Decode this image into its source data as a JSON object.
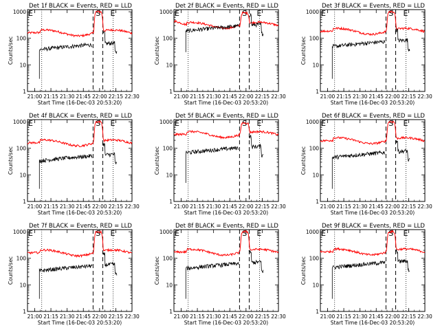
{
  "chart_data": {
    "type": "line",
    "xlabel": "Start Time (16-Dec-03 20:53:20)",
    "ylabel": "Counts/sec",
    "y_scale": "log",
    "ylim": [
      1,
      1200
    ],
    "xlim": [
      "20:53:20",
      "22:30:00"
    ],
    "x_tick_labels": [
      "21:00",
      "21:15",
      "21:30",
      "21:45",
      "22:00",
      "22:15",
      "22:30"
    ],
    "y_tick_labels": [
      "1",
      "10",
      "100",
      "1000"
    ],
    "markers": {
      "start": "S",
      "end": "E"
    },
    "colors": {
      "events": "#000000",
      "lld": "#ff0000"
    },
    "panels": [
      {
        "title": "Det 1f BLACK = Events, RED = LLD",
        "events_level": 50,
        "lld_level": 165,
        "peak": 1000,
        "lld_start": 160,
        "events_start": 3
      },
      {
        "title": "Det 2f BLACK = Events, RED = LLD",
        "events_level": 250,
        "lld_level": 320,
        "peak": 900,
        "lld_start": 450,
        "events_start": 30
      },
      {
        "title": "Det 3f BLACK = Events, RED = LLD",
        "events_level": 65,
        "lld_level": 190,
        "peak": 1000,
        "lld_start": 185,
        "events_start": 3
      },
      {
        "title": "Det 4f BLACK = Events, RED = LLD",
        "events_level": 45,
        "lld_level": 165,
        "peak": 1000,
        "lld_start": 160,
        "events_start": 3
      },
      {
        "title": "Det 5f BLACK = Events, RED = LLD",
        "events_level": 90,
        "lld_level": 340,
        "peak": 900,
        "lld_start": 330,
        "events_start": 5
      },
      {
        "title": "Det 6f BLACK = Events, RED = LLD",
        "events_level": 60,
        "lld_level": 200,
        "peak": 1000,
        "lld_start": 190,
        "events_start": 3
      },
      {
        "title": "Det 7f BLACK = Events, RED = LLD",
        "events_level": 45,
        "lld_level": 165,
        "peak": 1000,
        "lld_start": 160,
        "events_start": 3
      },
      {
        "title": "Det 8f BLACK = Events, RED = LLD",
        "events_level": 55,
        "lld_level": 175,
        "peak": 1000,
        "lld_start": 170,
        "events_start": 3
      },
      {
        "title": "Det 9f BLACK = Events, RED = LLD",
        "events_level": 60,
        "lld_level": 180,
        "peak": 1000,
        "lld_start": 175,
        "events_start": 3
      }
    ]
  }
}
